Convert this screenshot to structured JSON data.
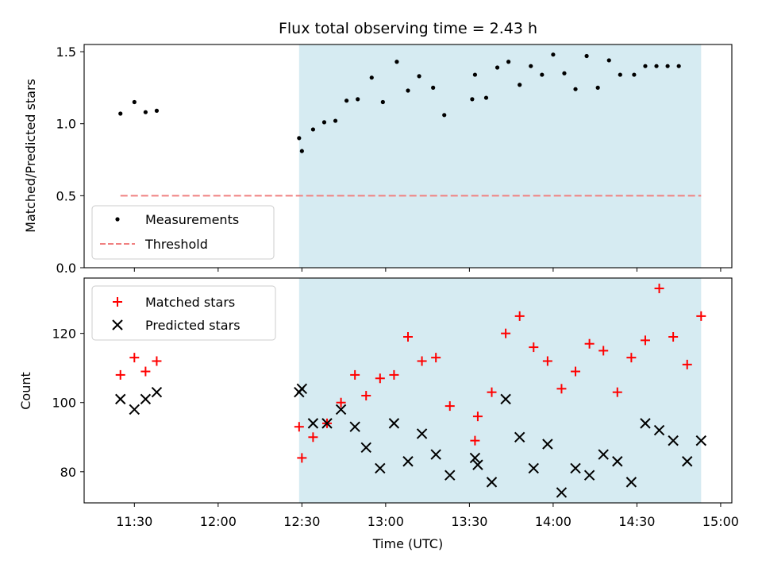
{
  "chart_data": [
    {
      "type": "scatter",
      "title": "Flux total observing time = 2.43 h",
      "ylabel": "Matched/Predicted stars",
      "ylim": [
        0,
        1.55
      ],
      "yticks": [
        0.0,
        0.5,
        1.0,
        1.5
      ],
      "ytick_labels": [
        "0.0",
        "0.5",
        "1.0",
        "1.5"
      ],
      "shaded_region": {
        "from": "12:29",
        "to": "14:53",
        "color": "#add8e6"
      },
      "legend_position": "lower-left",
      "series": [
        {
          "name": "Measurements",
          "marker": "dot",
          "color": "#000000",
          "x": [
            "11:25",
            "11:30",
            "11:34",
            "11:38",
            "12:29",
            "12:30",
            "12:34",
            "12:38",
            "12:42",
            "12:46",
            "12:50",
            "12:55",
            "12:59",
            "13:04",
            "13:08",
            "13:12",
            "13:17",
            "13:21",
            "13:31",
            "13:32",
            "13:36",
            "13:40",
            "13:44",
            "13:48",
            "13:52",
            "13:56",
            "14:00",
            "14:04",
            "14:08",
            "14:12",
            "14:16",
            "14:20",
            "14:24",
            "14:29",
            "14:33",
            "14:37",
            "14:41",
            "14:45"
          ],
          "y": [
            1.07,
            1.15,
            1.08,
            1.09,
            0.9,
            0.81,
            0.96,
            1.01,
            1.02,
            1.16,
            1.17,
            1.32,
            1.15,
            1.43,
            1.23,
            1.33,
            1.25,
            1.06,
            1.17,
            1.34,
            1.18,
            1.39,
            1.43,
            1.27,
            1.4,
            1.34,
            1.48,
            1.35,
            1.24,
            1.47,
            1.25,
            1.44,
            1.34,
            1.34,
            1.4,
            1.4,
            1.4,
            1.4
          ]
        },
        {
          "name": "Threshold",
          "line": "dashed",
          "color": "#f08080",
          "x": [
            "11:25",
            "14:53"
          ],
          "y": [
            0.5,
            0.5
          ]
        }
      ]
    },
    {
      "type": "scatter",
      "xlabel": "Time (UTC)",
      "ylabel": "Count",
      "ylim": [
        71,
        136
      ],
      "yticks": [
        80,
        100,
        120
      ],
      "ytick_labels": [
        "80",
        "100",
        "120"
      ],
      "xlim": [
        "11:12",
        "15:04"
      ],
      "xticks": [
        "11:30",
        "12:00",
        "12:30",
        "13:00",
        "13:30",
        "14:00",
        "14:30",
        "15:00"
      ],
      "xtick_labels": [
        "11:30",
        "12:00",
        "12:30",
        "13:00",
        "13:30",
        "14:00",
        "14:30",
        "15:00"
      ],
      "shaded_region": {
        "from": "12:29",
        "to": "14:53",
        "color": "#add8e6"
      },
      "legend_position": "upper-left",
      "series": [
        {
          "name": "Matched stars",
          "marker": "plus",
          "color": "#ff0000",
          "x": [
            "11:25",
            "11:30",
            "11:34",
            "11:38",
            "12:29",
            "12:30",
            "12:34",
            "12:39",
            "12:44",
            "12:49",
            "12:53",
            "12:58",
            "13:03",
            "13:08",
            "13:13",
            "13:18",
            "13:23",
            "13:32",
            "13:33",
            "13:38",
            "13:43",
            "13:48",
            "13:53",
            "13:58",
            "14:03",
            "14:08",
            "14:13",
            "14:18",
            "14:23",
            "14:28",
            "14:33",
            "14:38",
            "14:43",
            "14:48",
            "14:53"
          ],
          "y": [
            108,
            113,
            109,
            112,
            93,
            84,
            90,
            94,
            100,
            108,
            102,
            107,
            108,
            119,
            112,
            113,
            99,
            89,
            96,
            103,
            120,
            125,
            116,
            112,
            104,
            109,
            117,
            115,
            103,
            113,
            118,
            133,
            119,
            111,
            125
          ]
        },
        {
          "name": "Predicted stars",
          "marker": "x",
          "color": "#000000",
          "x": [
            "11:25",
            "11:30",
            "11:34",
            "11:38",
            "12:29",
            "12:30",
            "12:34",
            "12:39",
            "12:44",
            "12:49",
            "12:53",
            "12:58",
            "13:03",
            "13:08",
            "13:13",
            "13:18",
            "13:23",
            "13:32",
            "13:33",
            "13:38",
            "13:43",
            "13:48",
            "13:53",
            "13:58",
            "14:03",
            "14:08",
            "14:13",
            "14:18",
            "14:23",
            "14:28",
            "14:33",
            "14:38",
            "14:43",
            "14:48",
            "14:53"
          ],
          "y": [
            101,
            98,
            101,
            103,
            103,
            104,
            94,
            94,
            98,
            93,
            87,
            81,
            94,
            83,
            91,
            85,
            79,
            84,
            82,
            77,
            101,
            90,
            81,
            88,
            74,
            81,
            79,
            85,
            83,
            77,
            94,
            92,
            89,
            83,
            89
          ]
        }
      ]
    }
  ]
}
